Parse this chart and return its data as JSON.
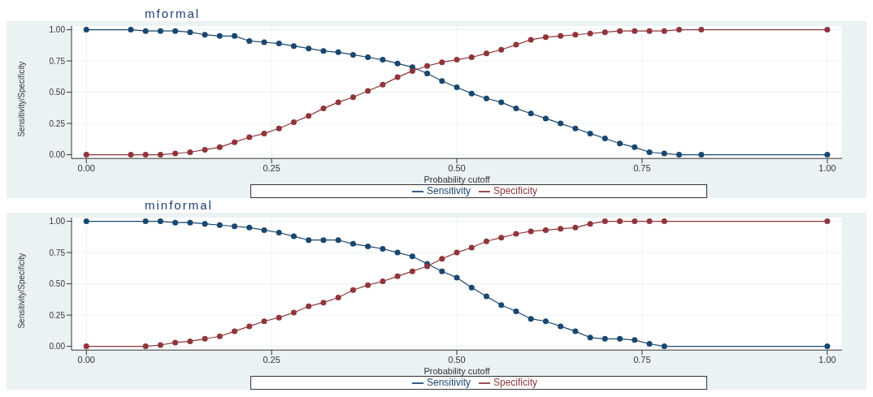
{
  "chart_data": [
    {
      "type": "line",
      "title": "mformal",
      "xlabel": "Probability cutoff",
      "ylabel": "Sensitivity/Specificity",
      "xlim": [
        -0.02,
        1.02
      ],
      "xticks": [
        {
          "value": 0,
          "label": "0.00"
        },
        {
          "value": 0.25,
          "label": "0.25"
        },
        {
          "value": 0.5,
          "label": "0.50"
        },
        {
          "value": 0.75,
          "label": "0.75"
        },
        {
          "value": 1,
          "label": "1.00"
        }
      ],
      "ylim": [
        -0.03,
        1.03
      ],
      "yticks": [
        {
          "value": 0,
          "label": "0.00"
        },
        {
          "value": 0.25,
          "label": "0.25"
        },
        {
          "value": 0.5,
          "label": "0.50"
        },
        {
          "value": 0.75,
          "label": "0.75"
        },
        {
          "value": 1,
          "label": "1.00"
        }
      ],
      "grid": true,
      "legend": "bottom",
      "marker": "circle",
      "line_style": "solid",
      "x": [
        0,
        0.06,
        0.08,
        0.1,
        0.12,
        0.14,
        0.16,
        0.18,
        0.2,
        0.22,
        0.24,
        0.26,
        0.28,
        0.3,
        0.32,
        0.34,
        0.36,
        0.38,
        0.4,
        0.42,
        0.44,
        0.46,
        0.48,
        0.5,
        0.52,
        0.54,
        0.56,
        0.58,
        0.6,
        0.62,
        0.64,
        0.66,
        0.68,
        0.7,
        0.72,
        0.74,
        0.76,
        0.78,
        0.8,
        0.83,
        1
      ],
      "series": [
        {
          "name": "Sensitivity",
          "color": "#1a476f",
          "values": [
            1,
            1,
            0.99,
            0.99,
            0.99,
            0.98,
            0.96,
            0.95,
            0.95,
            0.91,
            0.9,
            0.89,
            0.87,
            0.85,
            0.83,
            0.82,
            0.8,
            0.78,
            0.76,
            0.73,
            0.7,
            0.65,
            0.59,
            0.54,
            0.49,
            0.45,
            0.42,
            0.37,
            0.33,
            0.29,
            0.25,
            0.21,
            0.17,
            0.13,
            0.09,
            0.06,
            0.02,
            0.01,
            0,
            0,
            0
          ]
        },
        {
          "name": "Specificity",
          "color": "#90353b",
          "values": [
            0,
            0,
            0,
            0,
            0.01,
            0.02,
            0.04,
            0.06,
            0.1,
            0.14,
            0.17,
            0.21,
            0.26,
            0.31,
            0.37,
            0.42,
            0.46,
            0.51,
            0.56,
            0.62,
            0.67,
            0.71,
            0.74,
            0.76,
            0.78,
            0.81,
            0.84,
            0.88,
            0.92,
            0.94,
            0.95,
            0.96,
            0.97,
            0.98,
            0.99,
            0.99,
            0.99,
            0.99,
            1,
            1,
            1
          ]
        }
      ]
    },
    {
      "type": "line",
      "title": "minformal",
      "xlabel": "Probability cutoff",
      "ylabel": "Sensitivity/Specificity",
      "xlim": [
        -0.02,
        1.02
      ],
      "xticks": [
        {
          "value": 0,
          "label": "0.00"
        },
        {
          "value": 0.25,
          "label": "0.25"
        },
        {
          "value": 0.5,
          "label": "0.50"
        },
        {
          "value": 0.75,
          "label": "0.75"
        },
        {
          "value": 1,
          "label": "1.00"
        }
      ],
      "ylim": [
        -0.03,
        1.03
      ],
      "yticks": [
        {
          "value": 0,
          "label": "0.00"
        },
        {
          "value": 0.25,
          "label": "0.25"
        },
        {
          "value": 0.5,
          "label": "0.50"
        },
        {
          "value": 0.75,
          "label": "0.75"
        },
        {
          "value": 1,
          "label": "1.00"
        }
      ],
      "grid": true,
      "legend": "bottom",
      "marker": "circle",
      "line_style": "solid",
      "x": [
        0,
        0.08,
        0.1,
        0.12,
        0.14,
        0.16,
        0.18,
        0.2,
        0.22,
        0.24,
        0.26,
        0.28,
        0.3,
        0.32,
        0.34,
        0.36,
        0.38,
        0.4,
        0.42,
        0.44,
        0.46,
        0.48,
        0.5,
        0.52,
        0.54,
        0.56,
        0.58,
        0.6,
        0.62,
        0.64,
        0.66,
        0.68,
        0.7,
        0.72,
        0.74,
        0.76,
        0.78,
        1
      ],
      "series": [
        {
          "name": "Sensitivity",
          "color": "#1a476f",
          "values": [
            1,
            1,
            1,
            0.99,
            0.99,
            0.98,
            0.97,
            0.96,
            0.95,
            0.93,
            0.91,
            0.88,
            0.85,
            0.85,
            0.85,
            0.82,
            0.8,
            0.78,
            0.75,
            0.72,
            0.66,
            0.6,
            0.55,
            0.47,
            0.4,
            0.33,
            0.28,
            0.22,
            0.2,
            0.16,
            0.12,
            0.07,
            0.06,
            0.06,
            0.05,
            0.02,
            0,
            0
          ]
        },
        {
          "name": "Specificity",
          "color": "#90353b",
          "values": [
            0,
            0,
            0.01,
            0.03,
            0.04,
            0.06,
            0.08,
            0.12,
            0.16,
            0.2,
            0.23,
            0.27,
            0.32,
            0.35,
            0.39,
            0.45,
            0.49,
            0.52,
            0.56,
            0.6,
            0.64,
            0.7,
            0.75,
            0.79,
            0.84,
            0.87,
            0.9,
            0.92,
            0.93,
            0.94,
            0.95,
            0.98,
            1,
            1,
            1,
            1,
            1,
            1
          ]
        }
      ]
    }
  ]
}
